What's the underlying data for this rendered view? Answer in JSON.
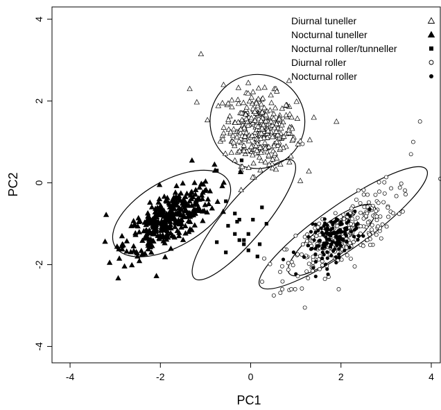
{
  "chart_data": {
    "type": "scatter",
    "title": "",
    "xlabel": "PC1",
    "ylabel": "PC2",
    "xlim": [
      -4.4,
      4.2
    ],
    "ylim": [
      -4.4,
      4.3
    ],
    "xticks": [
      -4,
      -2,
      0,
      2,
      4
    ],
    "yticks": [
      -4,
      -2,
      0,
      2,
      4
    ],
    "grid": false,
    "legend_position": "top-right",
    "series": [
      {
        "name": "Diurnal tuneller",
        "marker": "open-triangle",
        "cluster": {
          "center": [
            0.2,
            1.3
          ],
          "sd": [
            0.4,
            0.45
          ],
          "corr": -0.1,
          "n": 320
        },
        "outliers": [
          [
            -1.1,
            3.15
          ],
          [
            -1.35,
            2.3
          ],
          [
            1.4,
            1.6
          ],
          [
            1.9,
            1.5
          ],
          [
            -0.6,
            2.4
          ],
          [
            0.85,
            2.5
          ]
        ]
      },
      {
        "name": "Nocturnal tuneller",
        "marker": "filled-triangle",
        "cluster": {
          "center": [
            -1.8,
            -0.9
          ],
          "sd": [
            0.5,
            0.42
          ],
          "corr": 0.7,
          "n": 360
        },
        "outliers": [
          [
            -3.2,
            -0.78
          ],
          [
            -2.85,
            -1.3
          ],
          [
            -0.8,
            0.45
          ],
          [
            -1.3,
            0.55
          ],
          [
            -2.2,
            -1.7
          ],
          [
            -0.9,
            -0.2
          ]
        ]
      },
      {
        "name": "Nocturnal roller/tunneller",
        "marker": "filled-square",
        "points": [
          [
            -0.55,
            -0.45
          ],
          [
            -0.35,
            -0.75
          ],
          [
            -0.25,
            -0.9
          ],
          [
            -0.3,
            -0.95
          ],
          [
            0.25,
            -0.6
          ],
          [
            0.05,
            -0.9
          ],
          [
            -0.5,
            -1.05
          ],
          [
            -0.35,
            -1.25
          ],
          [
            -0.25,
            -1.4
          ],
          [
            -0.15,
            -1.4
          ],
          [
            -0.05,
            -1.25
          ],
          [
            -0.75,
            -1.45
          ],
          [
            -0.15,
            -1.5
          ],
          [
            -0.05,
            -1.65
          ],
          [
            0.35,
            -1.0
          ],
          [
            0.2,
            -1.5
          ],
          [
            0.15,
            -1.8
          ],
          [
            -0.2,
            0.55
          ],
          [
            -0.75,
            0.3
          ],
          [
            -0.55,
            -1.7
          ]
        ]
      },
      {
        "name": "Diurnal roller",
        "marker": "open-circle",
        "cluster": {
          "center": [
            2.0,
            -1.3
          ],
          "sd": [
            0.6,
            0.55
          ],
          "corr": 0.75,
          "n": 260
        },
        "outliers": [
          [
            4.2,
            0.1
          ],
          [
            3.75,
            1.5
          ],
          [
            3.6,
            1.0
          ],
          [
            3.55,
            0.7
          ],
          [
            1.2,
            -3.05
          ],
          [
            0.7,
            -2.6
          ],
          [
            0.9,
            -2.6
          ],
          [
            1.15,
            0.95
          ],
          [
            0.3,
            -1.85
          ],
          [
            1.95,
            -2.6
          ]
        ]
      },
      {
        "name": "Nocturnal roller",
        "marker": "filled-circle",
        "cluster": {
          "center": [
            1.85,
            -1.35
          ],
          "sd": [
            0.3,
            0.3
          ],
          "corr": 0.5,
          "n": 140
        },
        "outliers": []
      }
    ],
    "ellipses": [
      {
        "cx": 0.15,
        "cy": 1.5,
        "rx": 1.05,
        "ry": 1.15,
        "angle": 0
      },
      {
        "cx": -1.75,
        "cy": -0.75,
        "rx": 1.45,
        "ry": 0.8,
        "angle": 30
      },
      {
        "cx": -0.15,
        "cy": -0.9,
        "rx": 1.7,
        "ry": 0.5,
        "angle": 50
      },
      {
        "cx": 2.05,
        "cy": -1.1,
        "rx": 2.25,
        "ry": 0.55,
        "angle": 35
      },
      {
        "cx": 1.8,
        "cy": -1.4,
        "rx": 1.2,
        "ry": 0.4,
        "angle": 38
      }
    ]
  }
}
